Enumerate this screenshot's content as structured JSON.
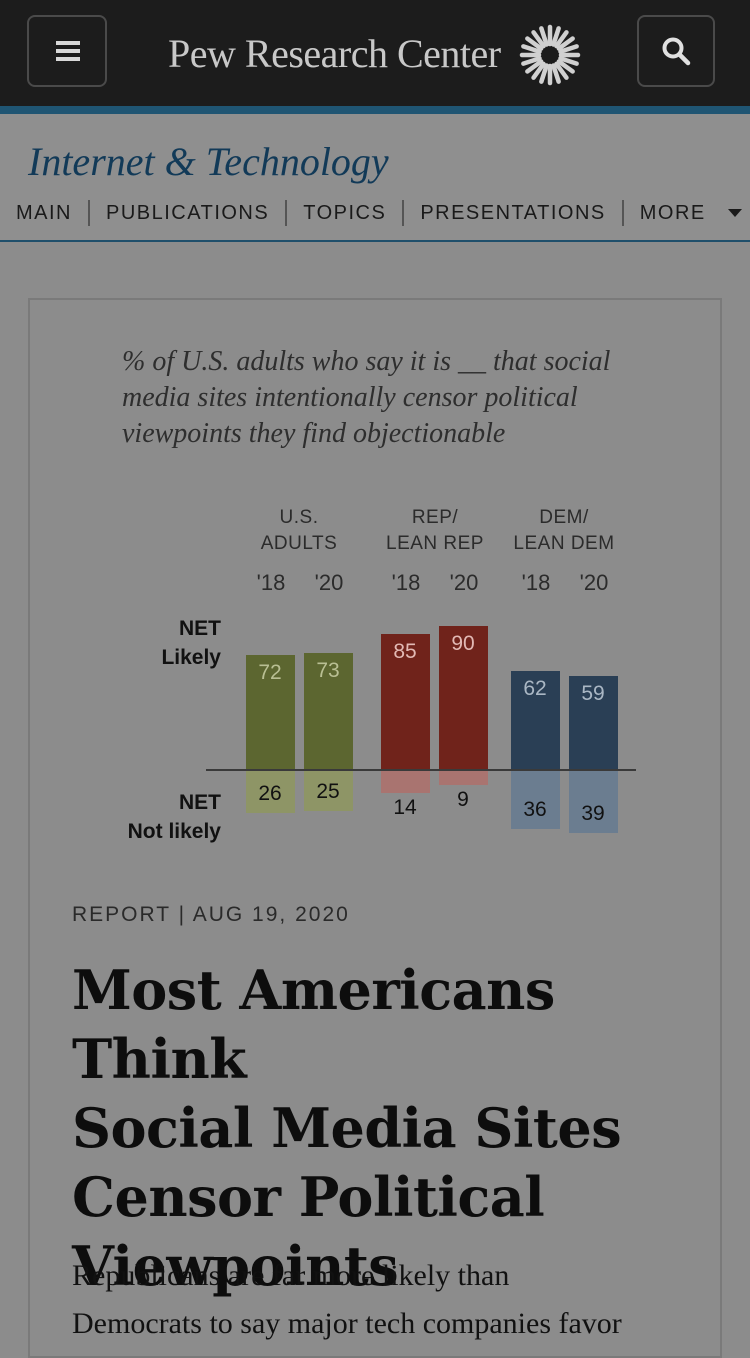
{
  "header": {
    "brand": "Pew Research Center",
    "menu_icon": "hamburger-menu-icon",
    "search_icon": "search-icon",
    "logo_icon": "sunburst-logo-icon"
  },
  "section": {
    "title": "Internet & Technology",
    "nav": [
      "MAIN",
      "PUBLICATIONS",
      "TOPICS",
      "PRESENTATIONS",
      "MORE"
    ]
  },
  "chart_data": {
    "type": "bar",
    "title": "% of U.S. adults who say it is __ that social media sites intentionally censor political viewpoints they find objectionable",
    "groups": [
      {
        "name": "U.S. ADULTS",
        "name_lines": [
          "U.S.",
          "ADULTS"
        ],
        "color": "#5c6630",
        "light_color": "#8e9566"
      },
      {
        "name": "REP/ LEAN REP",
        "name_lines": [
          "REP/",
          "LEAN REP"
        ],
        "color": "#70231b",
        "light_color": "#a97470"
      },
      {
        "name": "DEM/ LEAN DEM",
        "name_lines": [
          "DEM/",
          "LEAN DEM"
        ],
        "color": "#2a3f55",
        "light_color": "#6b7d90"
      }
    ],
    "categories": [
      "'18",
      "'20"
    ],
    "series": [
      {
        "name": "NET Likely",
        "name_lines": [
          "NET",
          "Likely"
        ],
        "values": [
          [
            72,
            73
          ],
          [
            85,
            90
          ],
          [
            62,
            59
          ]
        ]
      },
      {
        "name": "NET Not likely",
        "name_lines": [
          "NET",
          "Not likely"
        ],
        "values": [
          [
            26,
            25
          ],
          [
            14,
            9
          ],
          [
            36,
            39
          ]
        ]
      }
    ]
  },
  "article": {
    "meta": "REPORT | AUG 19, 2020",
    "headline_lines": [
      "Most Americans Think",
      "Social Media Sites",
      "Censor Political",
      "Viewpoints"
    ],
    "summary_lines": [
      "Republicans are far more likely than",
      "Democrats to say major tech companies favor"
    ]
  }
}
